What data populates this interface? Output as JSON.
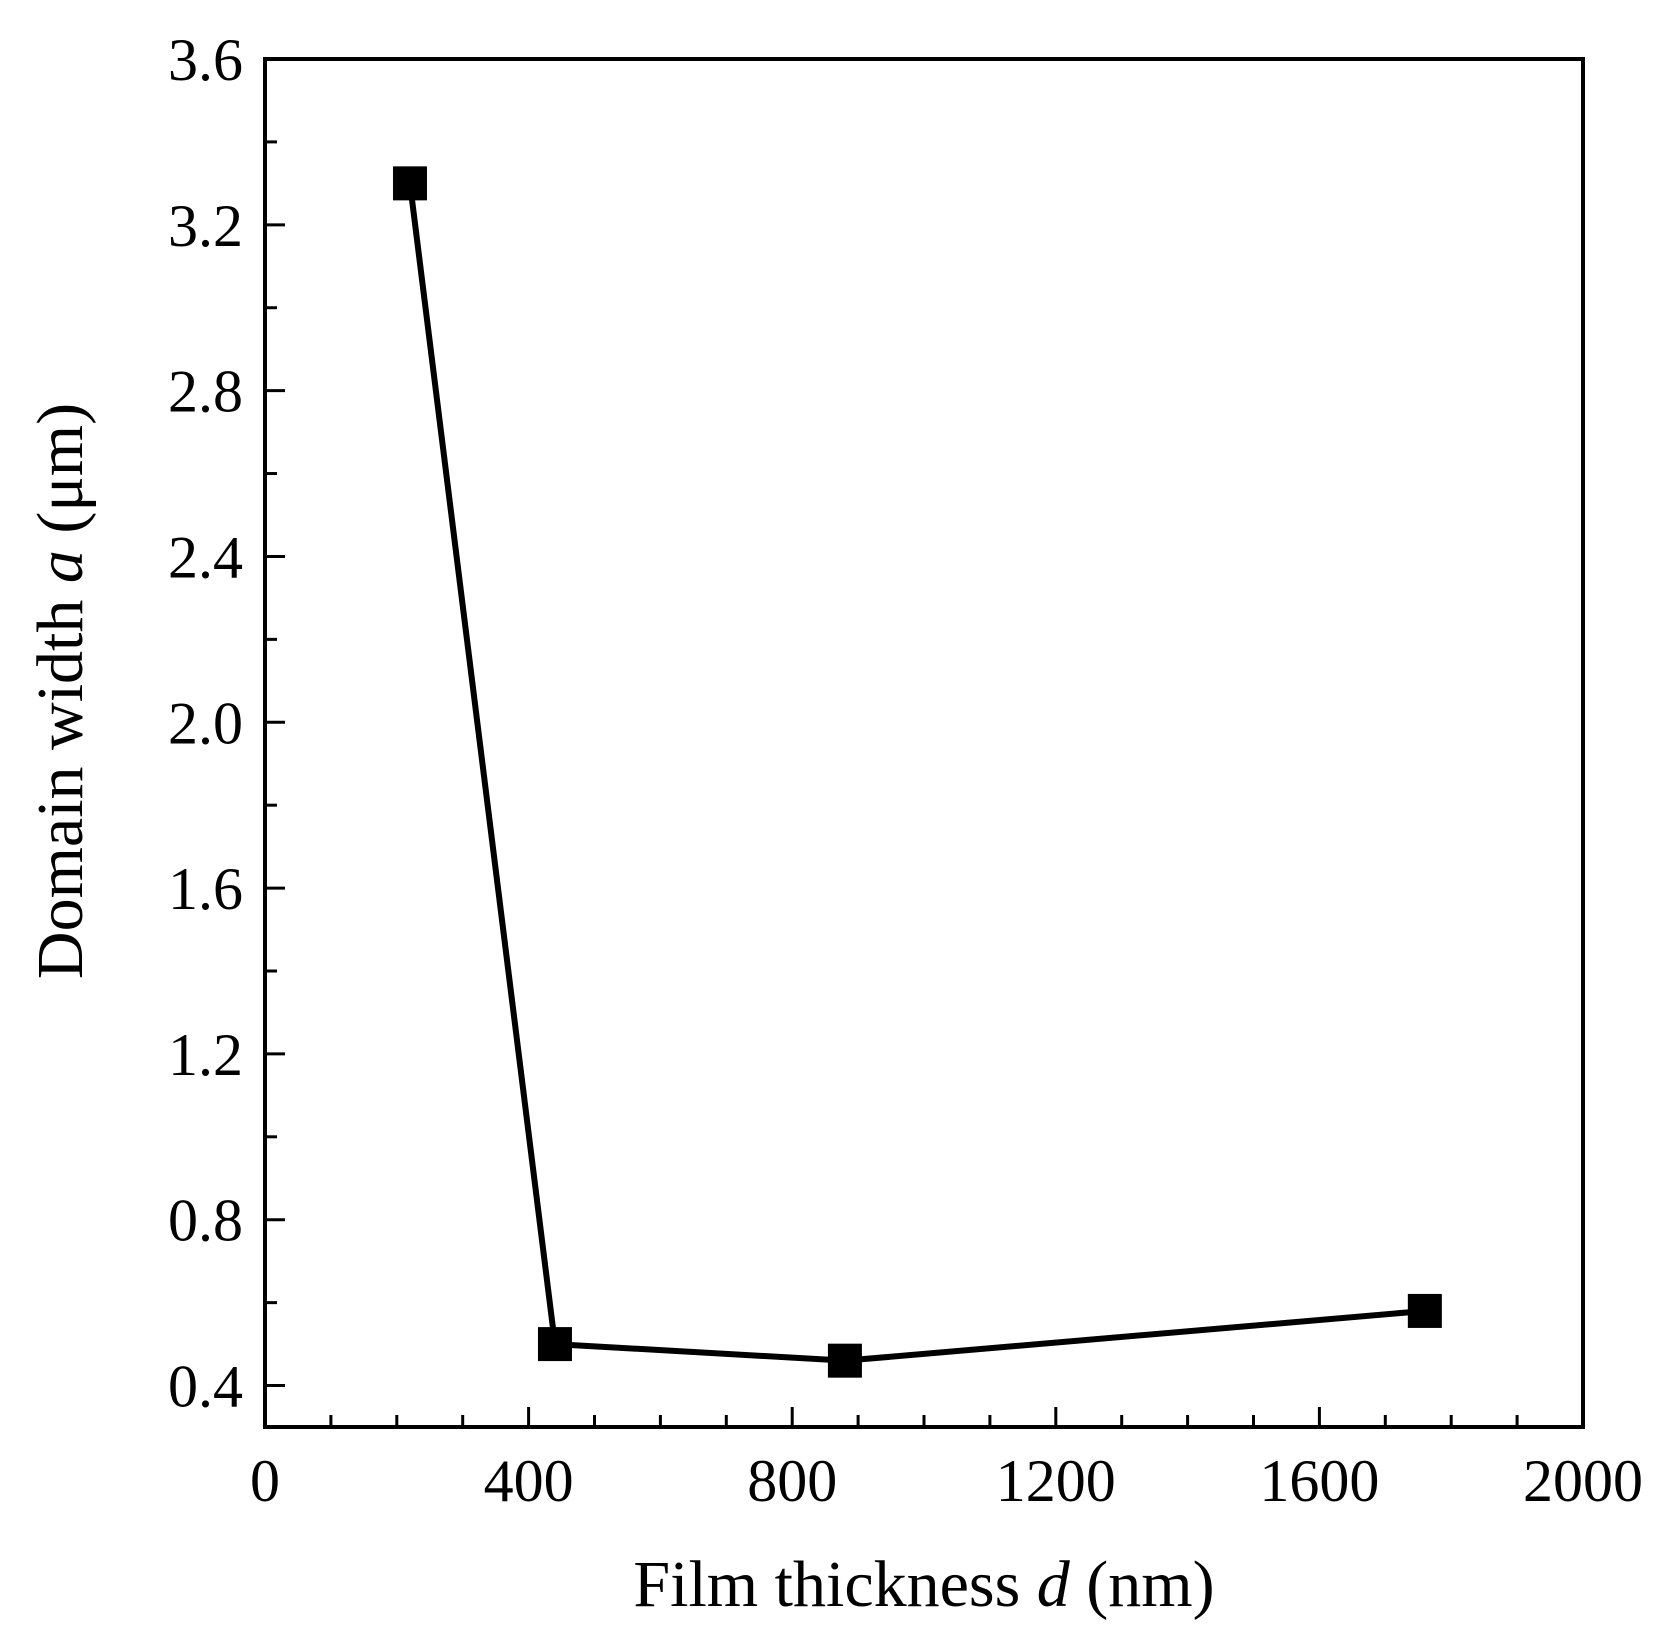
{
  "chart_data": {
    "type": "line",
    "title": "",
    "xlabel": {
      "pre": "Film thickness ",
      "var": "d",
      "unit": " (nm)"
    },
    "ylabel": {
      "pre": "Domain width ",
      "var": "a",
      "unit": " (μm)"
    },
    "xlim": [
      0,
      2000
    ],
    "ylim": [
      0.3,
      3.6
    ],
    "xticks": [
      0,
      400,
      800,
      1200,
      1600,
      2000
    ],
    "xtick_labels": [
      "0",
      "400",
      "800",
      "1200",
      "1600",
      "2000"
    ],
    "xminor_step": 100,
    "yticks": [
      0.4,
      0.8,
      1.2,
      1.6,
      2.0,
      2.4,
      2.8,
      3.2,
      3.6
    ],
    "ytick_labels": [
      "0.4",
      "0.8",
      "1.2",
      "1.6",
      "2.0",
      "2.4",
      "2.8",
      "3.2",
      "3.6"
    ],
    "yminor_step": 0.2,
    "grid": false,
    "legend": "none",
    "series": [
      {
        "marker": "square",
        "color": "#000000",
        "x": [
          220,
          440,
          880,
          1760
        ],
        "y": [
          3.3,
          0.5,
          0.46,
          0.58
        ]
      }
    ]
  }
}
